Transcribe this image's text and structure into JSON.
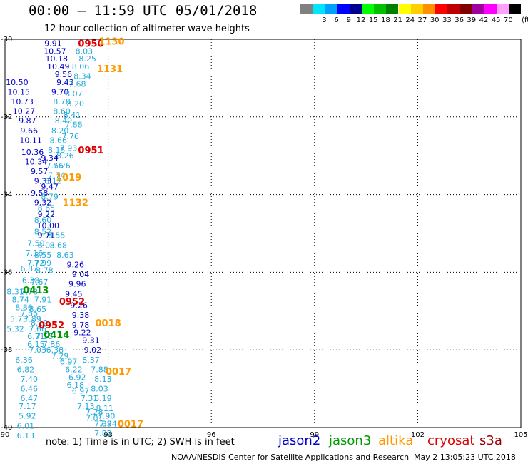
{
  "header": {
    "title": "00:00 – 11:59 UTC 05/01/2018",
    "subtitle": "12 hour collection of altimeter wave heights"
  },
  "colorbar": {
    "unit_label": "(ft)",
    "swatches": [
      {
        "color": "#808080",
        "label": ""
      },
      {
        "color": "#00e5ff",
        "label": "3"
      },
      {
        "color": "#00a0ff",
        "label": "6"
      },
      {
        "color": "#0000ff",
        "label": "9"
      },
      {
        "color": "#000090",
        "label": "12"
      },
      {
        "color": "#00ff00",
        "label": "15"
      },
      {
        "color": "#00c000",
        "label": "18"
      },
      {
        "color": "#008000",
        "label": "21"
      },
      {
        "color": "#ffff00",
        "label": "24"
      },
      {
        "color": "#ffd000",
        "label": "27"
      },
      {
        "color": "#ff9000",
        "label": "30"
      },
      {
        "color": "#ff0000",
        "label": "33"
      },
      {
        "color": "#c00000",
        "label": "36"
      },
      {
        "color": "#800000",
        "label": "39"
      },
      {
        "color": "#a000a0",
        "label": "42"
      },
      {
        "color": "#ff00ff",
        "label": "45"
      },
      {
        "color": "#ffa0ff",
        "label": "70"
      },
      {
        "color": "#000000",
        "label": ""
      }
    ]
  },
  "map_axes": {
    "lon_ticks": [
      90,
      93,
      96,
      99,
      102,
      105
    ],
    "lat_ticks": [
      -30,
      -32,
      -34,
      -36,
      -38,
      -40
    ]
  },
  "height_colors": {
    "c_light": "#22aadd",
    "c_blue": "#0000cc",
    "c_navy": "#000099"
  },
  "wave_labels": [
    {
      "text": "9.91",
      "lon": 91.4,
      "lat": -30.1,
      "c": "blue"
    },
    {
      "text": "10.57",
      "lon": 91.45,
      "lat": -30.3,
      "c": "blue"
    },
    {
      "text": "8.03",
      "lon": 92.3,
      "lat": -30.3,
      "c": "light"
    },
    {
      "text": "10.18",
      "lon": 91.5,
      "lat": -30.5,
      "c": "blue"
    },
    {
      "text": "8.25",
      "lon": 92.4,
      "lat": -30.5,
      "c": "light"
    },
    {
      "text": "10.49",
      "lon": 91.55,
      "lat": -30.7,
      "c": "blue"
    },
    {
      "text": "8.06",
      "lon": 92.2,
      "lat": -30.7,
      "c": "light"
    },
    {
      "text": "9.56",
      "lon": 91.7,
      "lat": -30.9,
      "c": "blue"
    },
    {
      "text": "8.34",
      "lon": 92.25,
      "lat": -30.95,
      "c": "light"
    },
    {
      "text": "10.50",
      "lon": 90.35,
      "lat": -31.1,
      "c": "blue"
    },
    {
      "text": "9.43",
      "lon": 91.75,
      "lat": -31.1,
      "c": "blue"
    },
    {
      "text": "7.68",
      "lon": 92.1,
      "lat": -31.15,
      "c": "light"
    },
    {
      "text": "10.15",
      "lon": 90.4,
      "lat": -31.35,
      "c": "blue"
    },
    {
      "text": "9.70",
      "lon": 91.6,
      "lat": -31.35,
      "c": "blue"
    },
    {
      "text": "8.07",
      "lon": 92.0,
      "lat": -31.4,
      "c": "light"
    },
    {
      "text": "10.73",
      "lon": 90.5,
      "lat": -31.6,
      "c": "blue"
    },
    {
      "text": "8.78",
      "lon": 91.65,
      "lat": -31.6,
      "c": "light"
    },
    {
      "text": "8.20",
      "lon": 92.05,
      "lat": -31.65,
      "c": "light"
    },
    {
      "text": "10.27",
      "lon": 90.55,
      "lat": -31.85,
      "c": "blue"
    },
    {
      "text": "8.60",
      "lon": 91.65,
      "lat": -31.85,
      "c": "light"
    },
    {
      "text": "8.41",
      "lon": 91.95,
      "lat": -31.95,
      "c": "light"
    },
    {
      "text": "9.87",
      "lon": 90.65,
      "lat": -32.1,
      "c": "blue"
    },
    {
      "text": "8.49",
      "lon": 91.7,
      "lat": -32.1,
      "c": "light"
    },
    {
      "text": "7.88",
      "lon": 92.0,
      "lat": -32.2,
      "c": "light"
    },
    {
      "text": "9.66",
      "lon": 90.7,
      "lat": -32.35,
      "c": "blue"
    },
    {
      "text": "8.20",
      "lon": 91.6,
      "lat": -32.35,
      "c": "light"
    },
    {
      "text": "7.76",
      "lon": 91.9,
      "lat": -32.5,
      "c": "light"
    },
    {
      "text": "10.11",
      "lon": 90.75,
      "lat": -32.6,
      "c": "blue"
    },
    {
      "text": "8.66",
      "lon": 91.55,
      "lat": -32.6,
      "c": "light"
    },
    {
      "text": "8.15",
      "lon": 91.5,
      "lat": -32.85,
      "c": "light"
    },
    {
      "text": "7.93",
      "lon": 91.85,
      "lat": -32.8,
      "c": "light"
    },
    {
      "text": "10.36",
      "lon": 90.8,
      "lat": -32.9,
      "c": "blue"
    },
    {
      "text": "8.26",
      "lon": 91.75,
      "lat": -33.0,
      "c": "light"
    },
    {
      "text": "10.34",
      "lon": 90.9,
      "lat": -33.15,
      "c": "blue"
    },
    {
      "text": "9.34",
      "lon": 91.3,
      "lat": -33.05,
      "c": "blue"
    },
    {
      "text": "7.56",
      "lon": 91.45,
      "lat": -33.25,
      "c": "light"
    },
    {
      "text": "9.57",
      "lon": 91.0,
      "lat": -33.4,
      "c": "blue"
    },
    {
      "text": "7.26",
      "lon": 91.65,
      "lat": -33.25,
      "c": "light"
    },
    {
      "text": "7.74",
      "lon": 91.5,
      "lat": -33.5,
      "c": "light"
    },
    {
      "text": "9.33",
      "lon": 91.1,
      "lat": -33.65,
      "c": "blue"
    },
    {
      "text": "8.12",
      "lon": 91.4,
      "lat": -33.65,
      "c": "light"
    },
    {
      "text": "9.47",
      "lon": 91.3,
      "lat": -33.8,
      "c": "blue"
    },
    {
      "text": "9.58",
      "lon": 91.0,
      "lat": -33.95,
      "c": "blue"
    },
    {
      "text": "8.79",
      "lon": 91.3,
      "lat": -34.05,
      "c": "light"
    },
    {
      "text": "9.32",
      "lon": 91.1,
      "lat": -34.2,
      "c": "blue"
    },
    {
      "text": "8.65",
      "lon": 91.2,
      "lat": -34.35,
      "c": "light"
    },
    {
      "text": "9.22",
      "lon": 91.2,
      "lat": -34.5,
      "c": "blue"
    },
    {
      "text": "8.60",
      "lon": 91.1,
      "lat": -34.65,
      "c": "light"
    },
    {
      "text": "10.00",
      "lon": 91.25,
      "lat": -34.8,
      "c": "blue"
    },
    {
      "text": "8.52",
      "lon": 91.1,
      "lat": -34.95,
      "c": "light"
    },
    {
      "text": "9.71",
      "lon": 91.2,
      "lat": -35.05,
      "c": "navy"
    },
    {
      "text": "8.55",
      "lon": 91.5,
      "lat": -35.05,
      "c": "light"
    },
    {
      "text": "7.50",
      "lon": 90.9,
      "lat": -35.25,
      "c": "light"
    },
    {
      "text": "8.03",
      "lon": 91.2,
      "lat": -35.3,
      "c": "light"
    },
    {
      "text": "8.68",
      "lon": 91.55,
      "lat": -35.3,
      "c": "light"
    },
    {
      "text": "7.16",
      "lon": 90.85,
      "lat": -35.5,
      "c": "light"
    },
    {
      "text": "8.55",
      "lon": 91.1,
      "lat": -35.55,
      "c": "light"
    },
    {
      "text": "8.63",
      "lon": 91.75,
      "lat": -35.55,
      "c": "light"
    },
    {
      "text": "7.72",
      "lon": 90.9,
      "lat": -35.75,
      "c": "light"
    },
    {
      "text": "7.99",
      "lon": 91.1,
      "lat": -35.75,
      "c": "light"
    },
    {
      "text": "9.26",
      "lon": 92.05,
      "lat": -35.8,
      "c": "blue"
    },
    {
      "text": "6.87",
      "lon": 90.7,
      "lat": -35.9,
      "c": "light"
    },
    {
      "text": "8.78",
      "lon": 91.15,
      "lat": -35.95,
      "c": "light"
    },
    {
      "text": "9.04",
      "lon": 92.2,
      "lat": -36.05,
      "c": "blue"
    },
    {
      "text": "6.38",
      "lon": 90.75,
      "lat": -36.2,
      "c": "light"
    },
    {
      "text": "7.67",
      "lon": 91.0,
      "lat": -36.25,
      "c": "light"
    },
    {
      "text": "9.96",
      "lon": 92.1,
      "lat": -36.3,
      "c": "blue"
    },
    {
      "text": "8.31",
      "lon": 90.3,
      "lat": -36.5,
      "c": "light"
    },
    {
      "text": "7.78",
      "lon": 90.7,
      "lat": -36.5,
      "c": "light"
    },
    {
      "text": "9.45",
      "lon": 92.0,
      "lat": -36.55,
      "c": "blue"
    },
    {
      "text": "8.74",
      "lon": 90.45,
      "lat": -36.7,
      "c": "light"
    },
    {
      "text": "7.91",
      "lon": 91.1,
      "lat": -36.7,
      "c": "light"
    },
    {
      "text": "9.26",
      "lon": 92.15,
      "lat": -36.85,
      "c": "blue"
    },
    {
      "text": "8.86",
      "lon": 90.55,
      "lat": -36.9,
      "c": "light"
    },
    {
      "text": "8.65",
      "lon": 90.95,
      "lat": -36.95,
      "c": "light"
    },
    {
      "text": "7.86",
      "lon": 90.7,
      "lat": -37.05,
      "c": "light"
    },
    {
      "text": "9.38",
      "lon": 92.2,
      "lat": -37.1,
      "c": "blue"
    },
    {
      "text": "5.73",
      "lon": 90.4,
      "lat": -37.2,
      "c": "light"
    },
    {
      "text": "7.89",
      "lon": 90.8,
      "lat": -37.2,
      "c": "light"
    },
    {
      "text": "8.19",
      "lon": 91.0,
      "lat": -37.3,
      "c": "light"
    },
    {
      "text": "9.78",
      "lon": 92.2,
      "lat": -37.35,
      "c": "blue"
    },
    {
      "text": "5.32",
      "lon": 90.3,
      "lat": -37.45,
      "c": "light"
    },
    {
      "text": "7.66",
      "lon": 90.95,
      "lat": -37.45,
      "c": "light"
    },
    {
      "text": "9.22",
      "lon": 92.25,
      "lat": -37.55,
      "c": "blue"
    },
    {
      "text": "6.71",
      "lon": 90.9,
      "lat": -37.65,
      "c": "light"
    },
    {
      "text": "7.55",
      "lon": 91.15,
      "lat": -37.65,
      "c": "light"
    },
    {
      "text": "9.31",
      "lon": 92.5,
      "lat": -37.75,
      "c": "blue"
    },
    {
      "text": "6.15",
      "lon": 90.9,
      "lat": -37.85,
      "c": "light"
    },
    {
      "text": "7.86",
      "lon": 91.35,
      "lat": -37.85,
      "c": "light"
    },
    {
      "text": "7.03",
      "lon": 90.95,
      "lat": -38.0,
      "c": "light"
    },
    {
      "text": "6.38",
      "lon": 91.45,
      "lat": -38.0,
      "c": "light"
    },
    {
      "text": "9.02",
      "lon": 92.55,
      "lat": -38.0,
      "c": "blue"
    },
    {
      "text": "7.29",
      "lon": 91.6,
      "lat": -38.15,
      "c": "light"
    },
    {
      "text": "6.36",
      "lon": 90.55,
      "lat": -38.25,
      "c": "light"
    },
    {
      "text": "6.97",
      "lon": 91.85,
      "lat": -38.3,
      "c": "light"
    },
    {
      "text": "8.37",
      "lon": 92.5,
      "lat": -38.25,
      "c": "light"
    },
    {
      "text": "6.82",
      "lon": 90.6,
      "lat": -38.5,
      "c": "light"
    },
    {
      "text": "6.22",
      "lon": 92.0,
      "lat": -38.5,
      "c": "light"
    },
    {
      "text": "7.88",
      "lon": 92.75,
      "lat": -38.5,
      "c": "light"
    },
    {
      "text": "7.40",
      "lon": 90.7,
      "lat": -38.75,
      "c": "light"
    },
    {
      "text": "6.92",
      "lon": 92.1,
      "lat": -38.7,
      "c": "light"
    },
    {
      "text": "8.13",
      "lon": 92.85,
      "lat": -38.75,
      "c": "light"
    },
    {
      "text": "6.46",
      "lon": 90.7,
      "lat": -39.0,
      "c": "light"
    },
    {
      "text": "6.18",
      "lon": 92.05,
      "lat": -38.9,
      "c": "light"
    },
    {
      "text": "8.03",
      "lon": 92.75,
      "lat": -39.0,
      "c": "light"
    },
    {
      "text": "6.97",
      "lon": 92.2,
      "lat": -39.05,
      "c": "light"
    },
    {
      "text": "6.47",
      "lon": 90.7,
      "lat": -39.25,
      "c": "light"
    },
    {
      "text": "7.31",
      "lon": 92.45,
      "lat": -39.25,
      "c": "light"
    },
    {
      "text": "8.19",
      "lon": 92.85,
      "lat": -39.25,
      "c": "light"
    },
    {
      "text": "7.17",
      "lon": 90.65,
      "lat": -39.45,
      "c": "light"
    },
    {
      "text": "7.13",
      "lon": 92.35,
      "lat": -39.45,
      "c": "light"
    },
    {
      "text": "8.11",
      "lon": 92.9,
      "lat": -39.5,
      "c": "light"
    },
    {
      "text": "5.92",
      "lon": 90.65,
      "lat": -39.7,
      "c": "light"
    },
    {
      "text": "7.28",
      "lon": 92.6,
      "lat": -39.6,
      "c": "light"
    },
    {
      "text": "7.90",
      "lon": 92.95,
      "lat": -39.7,
      "c": "light"
    },
    {
      "text": "7.01",
      "lon": 92.6,
      "lat": -39.75,
      "c": "light"
    },
    {
      "text": "6.01",
      "lon": 90.6,
      "lat": -39.95,
      "c": "light"
    },
    {
      "text": "7.33",
      "lon": 92.85,
      "lat": -39.9,
      "c": "light"
    },
    {
      "text": "7.94",
      "lon": 93.0,
      "lat": -39.9,
      "c": "light"
    },
    {
      "text": "6.13",
      "lon": 90.6,
      "lat": -40.2,
      "c": "light"
    },
    {
      "text": "7.82",
      "lon": 92.85,
      "lat": -40.15,
      "c": "light"
    }
  ],
  "time_labels": [
    {
      "text": "0950",
      "lon": 92.5,
      "lat": -30.1,
      "sat": "cryosat"
    },
    {
      "text": "1130",
      "lon": 93.1,
      "lat": -30.05,
      "sat": "altika"
    },
    {
      "text": "1131",
      "lon": 93.05,
      "lat": -30.75,
      "sat": "altika"
    },
    {
      "text": "0951",
      "lon": 92.5,
      "lat": -32.85,
      "sat": "cryosat"
    },
    {
      "text": "1019",
      "lon": 91.85,
      "lat": -33.55,
      "sat": "altika"
    },
    {
      "text": "1132",
      "lon": 92.05,
      "lat": -34.2,
      "sat": "altika"
    },
    {
      "text": "0413",
      "lon": 90.9,
      "lat": -36.45,
      "sat": "jason3"
    },
    {
      "text": "0952",
      "lon": 91.95,
      "lat": -36.75,
      "sat": "cryosat"
    },
    {
      "text": "0018",
      "lon": 93.0,
      "lat": -37.3,
      "sat": "altika"
    },
    {
      "text": "0952",
      "lon": 91.35,
      "lat": -37.35,
      "sat": "cryosat"
    },
    {
      "text": "0414",
      "lon": 91.5,
      "lat": -37.6,
      "sat": "jason3"
    },
    {
      "text": "0017",
      "lon": 93.3,
      "lat": -38.55,
      "sat": "altika"
    },
    {
      "text": "0017",
      "lon": 93.65,
      "lat": -39.9,
      "sat": "altika"
    }
  ],
  "footer": {
    "note": "note: 1) Time is in UTC; 2) SWH is in feet",
    "legend": [
      {
        "label": "jason2",
        "color": "#0000cc"
      },
      {
        "label": "jason3",
        "color": "#009900"
      },
      {
        "label": "altika",
        "color": "#ff9900"
      },
      {
        "label": "cryosat",
        "color": "#dd0000"
      },
      {
        "label": "s3a",
        "color": "#990000"
      }
    ],
    "credit": "NOAA/NESDIS Center for Satellite Applications and Research",
    "timestamp": "May  2 13:05:23 UTC 2018"
  }
}
